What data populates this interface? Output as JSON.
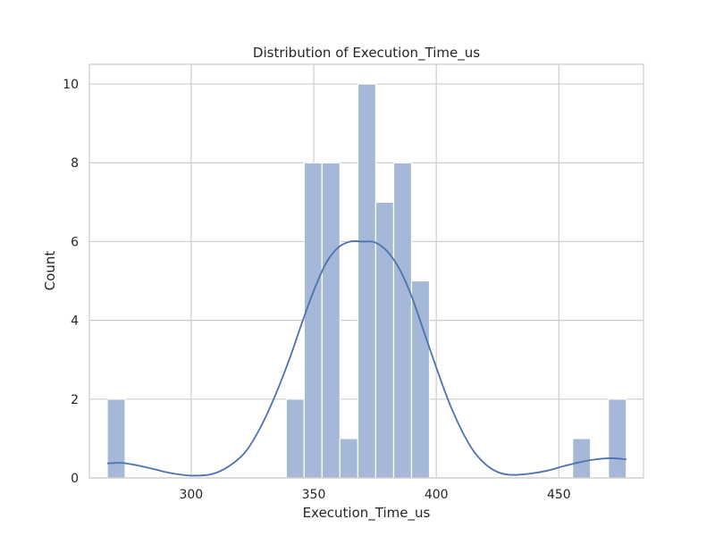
{
  "chart_data": {
    "type": "bar",
    "title": "Distribution of Execution_Time_us",
    "xlabel": "Execution_Time_us",
    "ylabel": "Count",
    "xlim": [
      258.5,
      484.5
    ],
    "ylim": [
      0,
      10.5
    ],
    "x_ticks": [
      300,
      350,
      400,
      450
    ],
    "y_ticks": [
      0,
      2,
      4,
      6,
      8,
      10
    ],
    "grid": true,
    "bar_color": "#a5b8d8",
    "kde_color": "#4c72b0",
    "bins": [
      {
        "start": 265.8,
        "end": 273.1,
        "count": 2
      },
      {
        "start": 273.1,
        "end": 280.4,
        "count": 0
      },
      {
        "start": 280.4,
        "end": 287.7,
        "count": 0
      },
      {
        "start": 287.7,
        "end": 295.0,
        "count": 0
      },
      {
        "start": 295.0,
        "end": 302.3,
        "count": 0
      },
      {
        "start": 302.3,
        "end": 309.6,
        "count": 0
      },
      {
        "start": 309.6,
        "end": 316.9,
        "count": 0
      },
      {
        "start": 316.9,
        "end": 324.2,
        "count": 0
      },
      {
        "start": 324.2,
        "end": 331.5,
        "count": 0
      },
      {
        "start": 331.5,
        "end": 338.8,
        "count": 0
      },
      {
        "start": 338.8,
        "end": 346.1,
        "count": 2
      },
      {
        "start": 346.1,
        "end": 353.4,
        "count": 8
      },
      {
        "start": 353.4,
        "end": 360.7,
        "count": 8
      },
      {
        "start": 360.7,
        "end": 368.0,
        "count": 1
      },
      {
        "start": 368.0,
        "end": 375.3,
        "count": 10
      },
      {
        "start": 375.3,
        "end": 382.6,
        "count": 7
      },
      {
        "start": 382.6,
        "end": 389.9,
        "count": 8
      },
      {
        "start": 389.9,
        "end": 397.2,
        "count": 5
      },
      {
        "start": 397.2,
        "end": 404.5,
        "count": 0
      },
      {
        "start": 404.5,
        "end": 411.8,
        "count": 0
      },
      {
        "start": 411.8,
        "end": 419.1,
        "count": 0
      },
      {
        "start": 419.1,
        "end": 426.4,
        "count": 0
      },
      {
        "start": 426.4,
        "end": 433.7,
        "count": 0
      },
      {
        "start": 433.7,
        "end": 441.0,
        "count": 0
      },
      {
        "start": 441.0,
        "end": 448.3,
        "count": 0
      },
      {
        "start": 448.3,
        "end": 455.6,
        "count": 0
      },
      {
        "start": 455.6,
        "end": 462.9,
        "count": 1
      },
      {
        "start": 462.9,
        "end": 470.2,
        "count": 0
      },
      {
        "start": 470.2,
        "end": 477.5,
        "count": 2
      }
    ],
    "kde": {
      "x": [
        265.8,
        272,
        278,
        285,
        292,
        300,
        308,
        315,
        322,
        328,
        334,
        340,
        345,
        350,
        355,
        360,
        365,
        370,
        375,
        380,
        385,
        390,
        395,
        400,
        405,
        410,
        415,
        420,
        425,
        430,
        437,
        445,
        452,
        460,
        466,
        472,
        477.5
      ],
      "y": [
        0.37,
        0.38,
        0.32,
        0.22,
        0.12,
        0.06,
        0.09,
        0.28,
        0.65,
        1.25,
        2.05,
        3.0,
        3.9,
        4.75,
        5.45,
        5.85,
        6.0,
        6.0,
        5.98,
        5.75,
        5.3,
        4.6,
        3.7,
        2.8,
        1.95,
        1.25,
        0.7,
        0.35,
        0.15,
        0.08,
        0.1,
        0.18,
        0.3,
        0.42,
        0.48,
        0.5,
        0.47
      ]
    }
  }
}
